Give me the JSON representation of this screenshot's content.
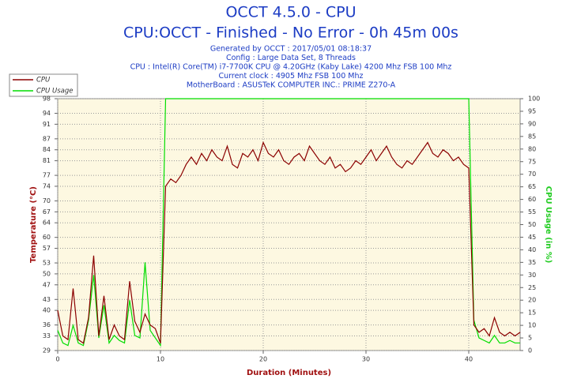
{
  "chart_data": {
    "type": "line",
    "title": "OCCT 4.5.0 - CPU",
    "subtitle": "CPU:OCCT - Finished - No Error - 0h 45m 00s",
    "annotations": [
      "Generated by OCCT : 2017/05/01 08:18:37",
      "Config : Large Data Set, 8 Threads",
      "CPU : Intel(R) Core(TM) i7-7700K CPU @ 4.20GHz (Kaby Lake) 4200 Mhz FSB 100 Mhz",
      "Current clock : 4905 Mhz FSB 100 Mhz",
      "MotherBoard : ASUSTeK COMPUTER INC.: PRIME Z270-A"
    ],
    "xlabel": "Duration (Minutes)",
    "ylabel": "Temperature (°C)",
    "y2label": "CPU Usage (in %)",
    "legend": "top-left",
    "grid": true,
    "xlim": [
      0,
      45
    ],
    "xticks": [
      0,
      10,
      20,
      30,
      40
    ],
    "ylim": [
      29,
      98
    ],
    "yticks": [
      29,
      33,
      36,
      40,
      43,
      47,
      50,
      53,
      57,
      60,
      64,
      67,
      70,
      74,
      77,
      81,
      84,
      87,
      91,
      94,
      98
    ],
    "y2lim": [
      0,
      100
    ],
    "y2ticks": [
      0,
      5,
      10,
      15,
      20,
      25,
      30,
      35,
      40,
      45,
      50,
      55,
      60,
      65,
      70,
      75,
      80,
      85,
      90,
      95,
      100
    ],
    "x": [
      0,
      0.5,
      1,
      1.5,
      2,
      2.5,
      3,
      3.5,
      4,
      4.5,
      5,
      5.5,
      6,
      6.5,
      7,
      7.5,
      8,
      8.5,
      9,
      9.5,
      10,
      10.5,
      11,
      11.5,
      12,
      12.5,
      13,
      13.5,
      14,
      14.5,
      15,
      15.5,
      16,
      16.5,
      17,
      17.5,
      18,
      18.5,
      19,
      19.5,
      20,
      20.5,
      21,
      21.5,
      22,
      22.5,
      23,
      23.5,
      24,
      24.5,
      25,
      25.5,
      26,
      26.5,
      27,
      27.5,
      28,
      28.5,
      29,
      29.5,
      30,
      30.5,
      31,
      31.5,
      32,
      32.5,
      33,
      33.5,
      34,
      34.5,
      35,
      35.5,
      36,
      36.5,
      37,
      37.5,
      38,
      38.5,
      39,
      39.5,
      40,
      40.5,
      41,
      41.5,
      42,
      42.5,
      43,
      43.5,
      44,
      44.5,
      45
    ],
    "series": [
      {
        "name": "CPU",
        "color": "#8b0000",
        "values": [
          40,
          33,
          32,
          46,
          32,
          31,
          38,
          55,
          33,
          44,
          32,
          36,
          33,
          32,
          48,
          37,
          34,
          39,
          36,
          35,
          31,
          74,
          76,
          75,
          77,
          80,
          82,
          80,
          83,
          81,
          84,
          82,
          81,
          85,
          80,
          79,
          83,
          82,
          84,
          81,
          86,
          83,
          82,
          84,
          81,
          80,
          82,
          83,
          81,
          85,
          83,
          81,
          80,
          82,
          79,
          80,
          78,
          79,
          81,
          80,
          82,
          84,
          81,
          83,
          85,
          82,
          80,
          79,
          81,
          80,
          82,
          84,
          86,
          83,
          82,
          84,
          83,
          81,
          82,
          80,
          79,
          36,
          34,
          35,
          33,
          38,
          34,
          33,
          34,
          33,
          34
        ]
      },
      {
        "name": "CPU Usage",
        "color": "#00dd00",
        "axis": "y2",
        "values": [
          8,
          3,
          2,
          10,
          3,
          2,
          12,
          30,
          5,
          18,
          3,
          6,
          4,
          3,
          20,
          6,
          5,
          35,
          8,
          5,
          2,
          100,
          100,
          100,
          100,
          100,
          100,
          100,
          100,
          100,
          100,
          100,
          100,
          100,
          100,
          100,
          100,
          100,
          100,
          100,
          100,
          100,
          100,
          100,
          100,
          100,
          100,
          100,
          100,
          100,
          100,
          100,
          100,
          100,
          100,
          100,
          100,
          100,
          100,
          100,
          100,
          100,
          100,
          100,
          100,
          100,
          100,
          100,
          100,
          100,
          100,
          100,
          100,
          100,
          100,
          100,
          100,
          100,
          100,
          100,
          100,
          12,
          5,
          4,
          3,
          6,
          3,
          3,
          4,
          3,
          3
        ]
      }
    ]
  }
}
